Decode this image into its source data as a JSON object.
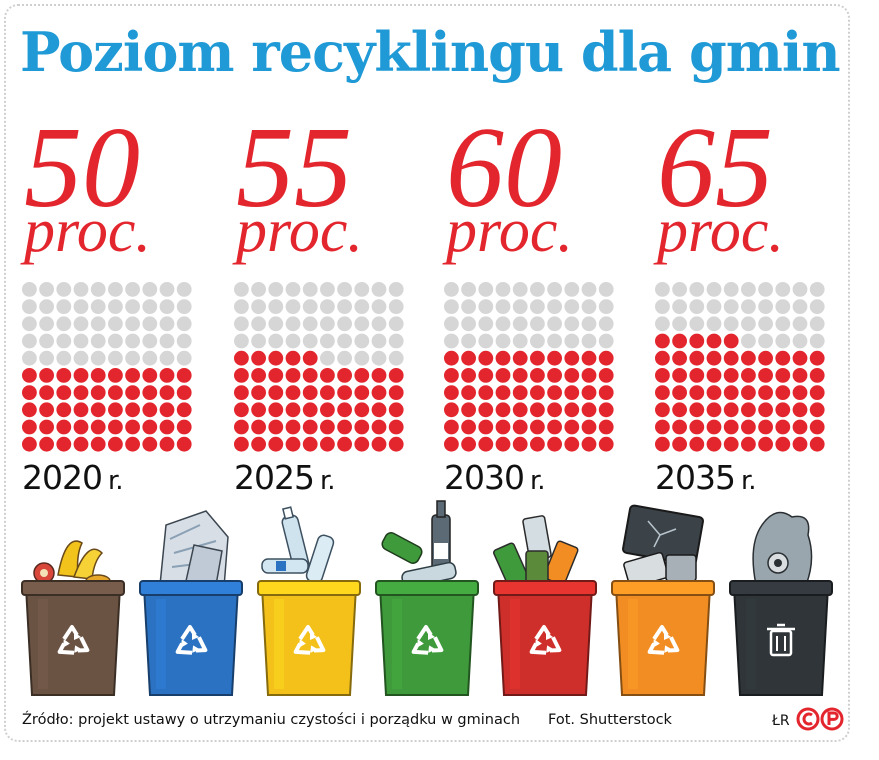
{
  "title": "Poziom recyklingu dla gmin",
  "chart_data": {
    "type": "waffle",
    "title": "Poziom recyklingu dla gmin",
    "unit": "proc.",
    "categories": [
      "2020 r.",
      "2025 r.",
      "2030 r.",
      "2035 r."
    ],
    "values": [
      50,
      55,
      60,
      65
    ],
    "grid": {
      "rows": 10,
      "cols": 10,
      "total": 100
    },
    "colors": {
      "filled": "#e3262d",
      "empty": "#d6d6d6"
    }
  },
  "panels": [
    {
      "value": "50",
      "unit": "proc.",
      "year": "2020",
      "year_suffix": "r."
    },
    {
      "value": "55",
      "unit": "proc.",
      "year": "2025",
      "year_suffix": "r."
    },
    {
      "value": "60",
      "unit": "proc.",
      "year": "2030",
      "year_suffix": "r."
    },
    {
      "value": "65",
      "unit": "proc.",
      "year": "2035",
      "year_suffix": "r."
    }
  ],
  "bins": [
    {
      "icon": "bio-waste-bin-icon",
      "color": "#6b5344",
      "content": "food"
    },
    {
      "icon": "paper-bin-icon",
      "color": "#2b72c2",
      "content": "paper"
    },
    {
      "icon": "plastic-bin-icon",
      "color": "#f3c11a",
      "content": "bottles"
    },
    {
      "icon": "glass-bin-icon",
      "color": "#3e9a3a",
      "content": "glass"
    },
    {
      "icon": "metal-bin-icon",
      "color": "#cf2f2b",
      "content": "cans"
    },
    {
      "icon": "electronics-bin-icon",
      "color": "#f18d22",
      "content": "electronics"
    },
    {
      "icon": "mixed-waste-bin-icon",
      "color": "#2f3539",
      "content": "mixed"
    }
  ],
  "footer": {
    "source": "Źródło: projekt ustawy o utrzymaniu czystości i porządku w gminach",
    "photo": "Fot. Shutterstock",
    "author": "ŁR"
  },
  "colors": {
    "title": "#1f9ad6",
    "accent": "#e3262d"
  }
}
